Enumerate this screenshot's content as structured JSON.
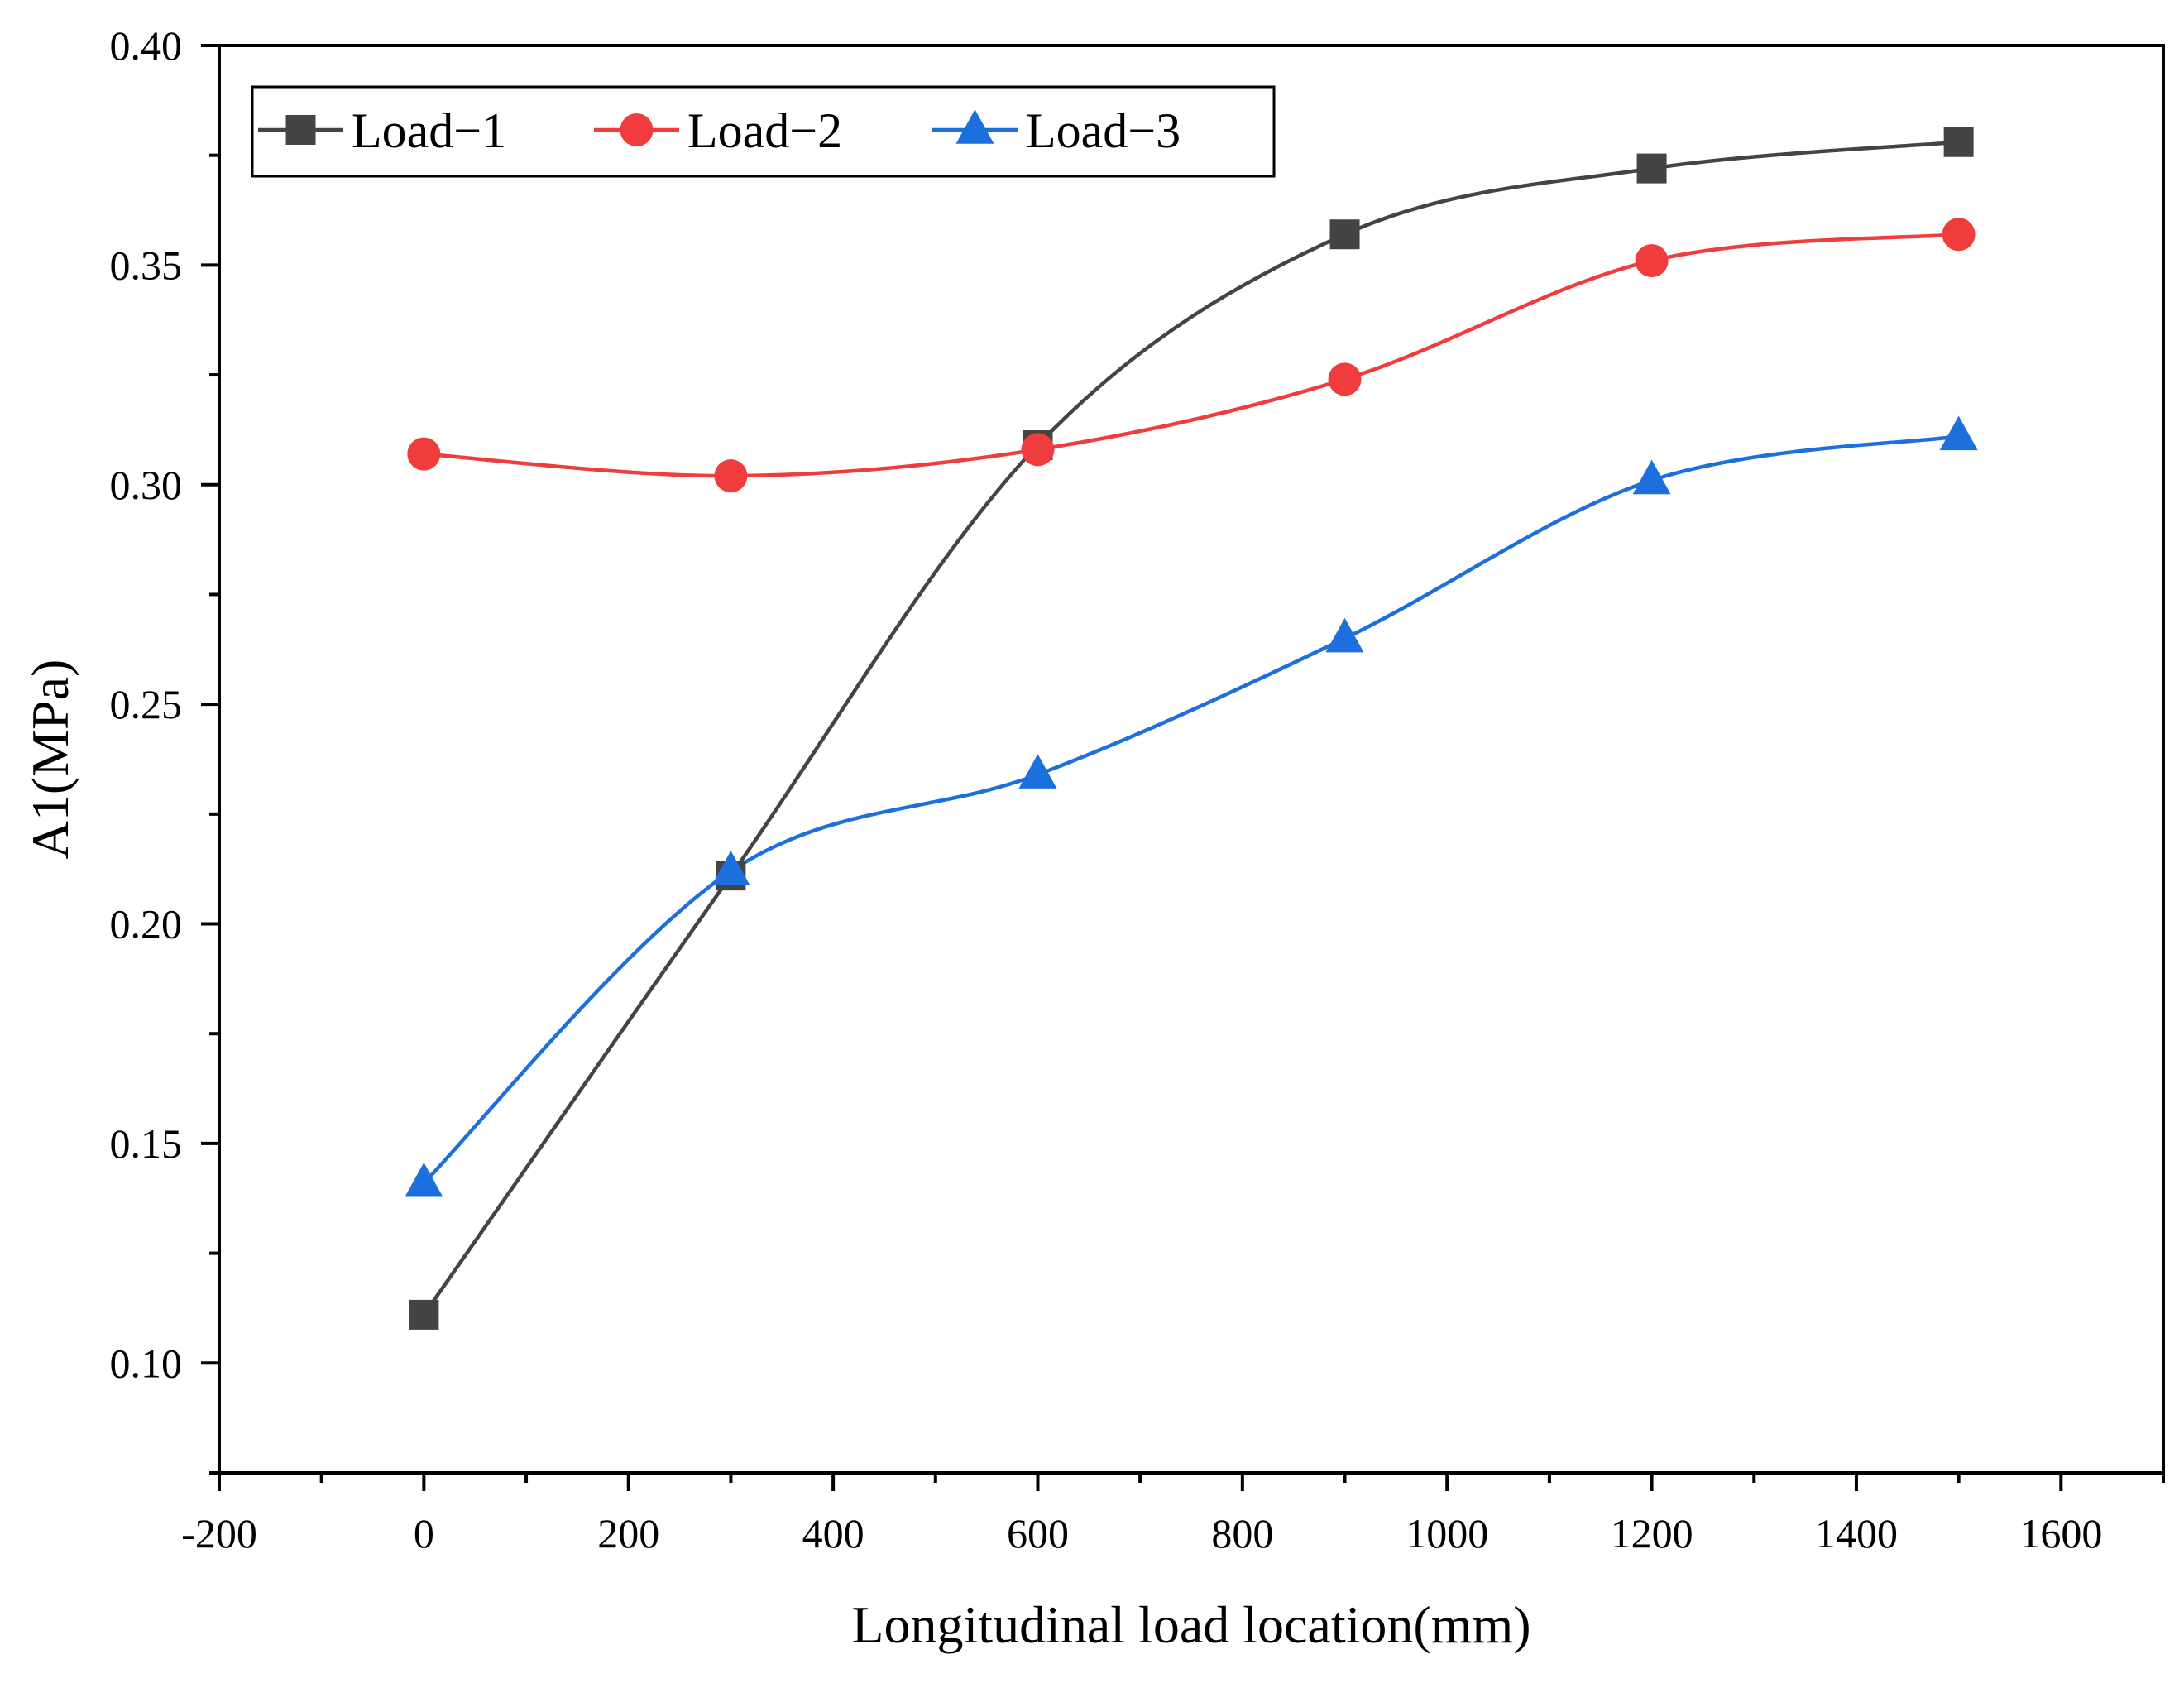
{
  "chart_data": {
    "type": "line",
    "title": "",
    "xlabel": "Longitudinal load location(mm)",
    "ylabel": "A1(MPa)",
    "xlim": [
      -200,
      1700
    ],
    "ylim": [
      0.075,
      0.4
    ],
    "xticks": [
      -200,
      0,
      200,
      400,
      600,
      800,
      1000,
      1200,
      1400,
      1600
    ],
    "xtick_labels": [
      "-200",
      "0",
      "200",
      "400",
      "600",
      "800",
      "1000",
      "1200",
      "1400",
      "1600"
    ],
    "yticks": [
      0.1,
      0.15,
      0.2,
      0.25,
      0.3,
      0.35,
      0.4
    ],
    "ytick_labels": [
      "0.10",
      "0.15",
      "0.20",
      "0.25",
      "0.30",
      "0.35",
      "0.40"
    ],
    "grid": false,
    "legend_position": "top-left",
    "x": [
      0,
      300,
      600,
      900,
      1200,
      1500
    ],
    "series": [
      {
        "name": "Load−1",
        "color": "#444444",
        "marker": "square",
        "values": [
          0.111,
          0.211,
          0.309,
          0.357,
          0.372,
          0.378
        ]
      },
      {
        "name": "Load−2",
        "color": "#f03c3c",
        "marker": "circle",
        "values": [
          0.307,
          0.302,
          0.308,
          0.324,
          0.351,
          0.357
        ]
      },
      {
        "name": "Load−3",
        "color": "#1c6fdc",
        "marker": "triangle",
        "values": [
          0.141,
          0.212,
          0.234,
          0.265,
          0.301,
          0.311
        ]
      }
    ]
  }
}
